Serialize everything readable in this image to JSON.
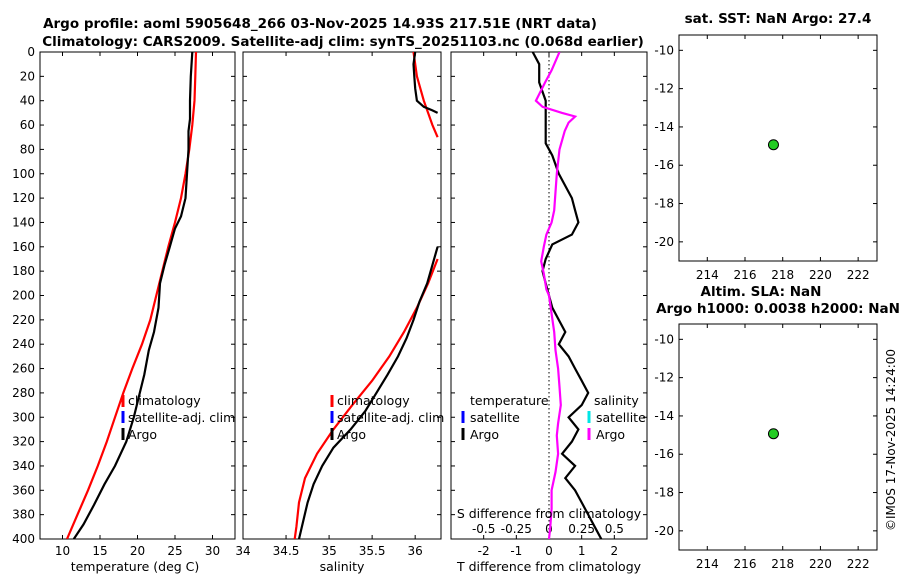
{
  "title": {
    "line1": "Argo profile: aoml 5905648_266 03-Nov-2025 14.93S 217.51E (NRT data)",
    "line2": "Climatology: CARS2009. Satellite-adj clim: synTS_20251103.nc (0.068d earlier)"
  },
  "timestamp": "©IMOS 17-Nov-2025 14:24:00",
  "colors": {
    "climatology": "#ff0000",
    "satellite": "#0000ff",
    "satellite_salinity": "#00e5e5",
    "argo": "#000000",
    "s_diff": "#ff00ff",
    "marker": "#22cc22"
  },
  "chart_data": [
    {
      "id": "temperature",
      "type": "line",
      "xlabel": "temperature (deg C)",
      "ylabel": "",
      "xlim": [
        7,
        33
      ],
      "ylim": [
        400,
        0
      ],
      "xticks": [
        10,
        15,
        20,
        25,
        30
      ],
      "yticks": [
        0,
        20,
        40,
        60,
        80,
        100,
        120,
        140,
        160,
        180,
        200,
        220,
        240,
        260,
        280,
        300,
        320,
        340,
        360,
        380,
        400
      ],
      "legend": [
        "climatology",
        "satellite-adj. clim",
        "Argo"
      ],
      "series": [
        {
          "name": "climatology",
          "color": "#ff0000",
          "points": [
            [
              27.8,
              0
            ],
            [
              27.7,
              20
            ],
            [
              27.6,
              40
            ],
            [
              27.3,
              60
            ],
            [
              26.9,
              80
            ],
            [
              26.4,
              100
            ],
            [
              25.8,
              120
            ],
            [
              25.0,
              140
            ],
            [
              24.1,
              160
            ],
            [
              23.3,
              180
            ],
            [
              22.5,
              200
            ],
            [
              21.7,
              220
            ],
            [
              20.6,
              240
            ],
            [
              19.3,
              260
            ],
            [
              18.1,
              280
            ],
            [
              17.0,
              300
            ],
            [
              15.9,
              320
            ],
            [
              14.7,
              340
            ],
            [
              13.4,
              360
            ],
            [
              12.0,
              380
            ],
            [
              10.6,
              400
            ]
          ]
        },
        {
          "name": "Argo",
          "color": "#000000",
          "points": [
            [
              27.3,
              0
            ],
            [
              27.1,
              20
            ],
            [
              27.0,
              40
            ],
            [
              27.0,
              55
            ],
            [
              26.8,
              65
            ],
            [
              26.8,
              80
            ],
            [
              26.6,
              100
            ],
            [
              26.4,
              120
            ],
            [
              25.8,
              135
            ],
            [
              25.0,
              145
            ],
            [
              24.3,
              160
            ],
            [
              23.6,
              175
            ],
            [
              23.0,
              190
            ],
            [
              22.8,
              210
            ],
            [
              22.2,
              230
            ],
            [
              21.5,
              245
            ],
            [
              20.9,
              265
            ],
            [
              20.3,
              280
            ],
            [
              19.5,
              300
            ],
            [
              18.5,
              320
            ],
            [
              17.0,
              340
            ],
            [
              15.6,
              355
            ],
            [
              14.2,
              372
            ],
            [
              12.8,
              388
            ],
            [
              11.5,
              400
            ]
          ]
        }
      ]
    },
    {
      "id": "salinity",
      "type": "line",
      "xlabel": "salinity",
      "xlim": [
        34.0,
        36.3
      ],
      "ylim": [
        400,
        0
      ],
      "xticks": [
        "34",
        "34.5",
        "35",
        "35.5",
        "36"
      ],
      "legend": [
        "climatology",
        "satellite-adj. clim",
        "Argo"
      ],
      "series": [
        {
          "name": "climatology",
          "color": "#ff0000",
          "points": [
            [
              35.98,
              0
            ],
            [
              36.02,
              20
            ],
            [
              36.1,
              40
            ],
            [
              36.2,
              60
            ],
            [
              36.26,
              70
            ]
          ]
        },
        {
          "name": "climatology",
          "color": "#ff0000",
          "points": [
            [
              36.26,
              170
            ],
            [
              36.15,
              190
            ],
            [
              36.02,
              210
            ],
            [
              35.87,
              230
            ],
            [
              35.7,
              250
            ],
            [
              35.5,
              270
            ],
            [
              35.27,
              290
            ],
            [
              35.05,
              310
            ],
            [
              34.86,
              330
            ],
            [
              34.72,
              350
            ],
            [
              34.65,
              370
            ],
            [
              34.62,
              390
            ],
            [
              34.6,
              400
            ]
          ]
        },
        {
          "name": "Argo",
          "color": "#000000",
          "points": [
            [
              36.0,
              0
            ],
            [
              35.98,
              10
            ],
            [
              35.99,
              20
            ],
            [
              36.0,
              30
            ],
            [
              36.02,
              40
            ],
            [
              36.1,
              45
            ],
            [
              36.2,
              48
            ],
            [
              36.26,
              50
            ]
          ]
        },
        {
          "name": "Argo",
          "color": "#000000",
          "points": [
            [
              36.26,
              160
            ],
            [
              36.2,
              175
            ],
            [
              36.14,
              190
            ],
            [
              36.05,
              205
            ],
            [
              35.98,
              220
            ],
            [
              35.9,
              235
            ],
            [
              35.8,
              250
            ],
            [
              35.68,
              265
            ],
            [
              35.55,
              280
            ],
            [
              35.42,
              295
            ],
            [
              35.25,
              310
            ],
            [
              35.05,
              325
            ],
            [
              34.92,
              340
            ],
            [
              34.82,
              355
            ],
            [
              34.75,
              370
            ],
            [
              34.7,
              385
            ],
            [
              34.65,
              400
            ]
          ]
        }
      ]
    },
    {
      "id": "difference",
      "type": "line",
      "xlabel": "T difference from climatology",
      "top_axis_label": "S difference from climatology",
      "xlim": [
        -3,
        3
      ],
      "ylim": [
        400,
        0
      ],
      "xticks": [
        "-2",
        "-1",
        "0",
        "1",
        "2"
      ],
      "top_ticks": [
        "-0.5",
        "-0.25",
        "0",
        "0.25",
        "0.5"
      ],
      "legend_headers": [
        "temperature",
        "salinity"
      ],
      "legend": [
        "satellite",
        "Argo",
        "satellite",
        "Argo"
      ],
      "series": [
        {
          "name": "T difference (Argo)",
          "color": "#000000",
          "points": [
            [
              -0.5,
              0
            ],
            [
              -0.3,
              10
            ],
            [
              -0.3,
              25
            ],
            [
              -0.1,
              40
            ],
            [
              -0.1,
              60
            ],
            [
              -0.1,
              75
            ],
            [
              0.1,
              85
            ],
            [
              0.3,
              100
            ],
            [
              0.5,
              110
            ],
            [
              0.7,
              120
            ],
            [
              0.8,
              130
            ],
            [
              0.9,
              140
            ],
            [
              0.7,
              150
            ],
            [
              0.1,
              158
            ],
            [
              -0.1,
              170
            ],
            [
              -0.2,
              180
            ],
            [
              -0.1,
              190
            ],
            [
              0.0,
              200
            ],
            [
              0.1,
              210
            ],
            [
              0.3,
              220
            ],
            [
              0.5,
              230
            ],
            [
              0.3,
              240
            ],
            [
              0.6,
              250
            ],
            [
              0.8,
              260
            ],
            [
              1.0,
              270
            ],
            [
              1.2,
              280
            ],
            [
              1.0,
              290
            ],
            [
              0.6,
              300
            ],
            [
              0.9,
              310
            ],
            [
              0.7,
              320
            ],
            [
              0.4,
              330
            ],
            [
              0.8,
              340
            ],
            [
              0.5,
              350
            ],
            [
              0.8,
              360
            ],
            [
              1.0,
              370
            ],
            [
              1.2,
              380
            ],
            [
              1.4,
              390
            ],
            [
              1.6,
              400
            ]
          ]
        },
        {
          "name": "S difference (Argo)",
          "color": "#ff00ff",
          "points": [
            [
              0.08,
              0
            ],
            [
              0.02,
              15
            ],
            [
              -0.03,
              25
            ],
            [
              -0.1,
              40
            ],
            [
              -0.05,
              45
            ],
            [
              0.1,
              50
            ],
            [
              0.2,
              53
            ],
            [
              0.15,
              58
            ],
            [
              0.12,
              65
            ],
            [
              0.08,
              80
            ],
            [
              0.06,
              100
            ],
            [
              0.05,
              115
            ],
            [
              0.04,
              130
            ],
            [
              0.02,
              140
            ],
            [
              -0.02,
              150
            ],
            [
              -0.04,
              160
            ],
            [
              -0.06,
              172
            ],
            [
              -0.04,
              182
            ],
            [
              -0.02,
              195
            ],
            [
              0.0,
              200
            ],
            [
              0.02,
              215
            ],
            [
              0.04,
              230
            ],
            [
              0.05,
              245
            ],
            [
              0.07,
              260
            ],
            [
              0.08,
              275
            ],
            [
              0.09,
              290
            ],
            [
              0.07,
              305
            ],
            [
              0.06,
              315
            ],
            [
              0.07,
              330
            ],
            [
              0.05,
              345
            ],
            [
              0.02,
              360
            ],
            [
              0.02,
              375
            ],
            [
              0.01,
              390
            ],
            [
              0.0,
              400
            ]
          ]
        }
      ]
    },
    {
      "id": "sst-map",
      "type": "scatter",
      "title": "sat. SST: NaN Argo: 27.4",
      "xlim": [
        212.5,
        223
      ],
      "ylim": [
        -21,
        -9.2
      ],
      "xticks": [
        "214",
        "216",
        "218",
        "220",
        "222"
      ],
      "yticks": [
        "-10",
        "-12",
        "-14",
        "-16",
        "-18",
        "-20"
      ],
      "points": [
        [
          217.51,
          -14.93
        ]
      ]
    },
    {
      "id": "sla-map",
      "type": "scatter",
      "title": "Altim. SLA: NaN",
      "subtitle": "Argo h1000: 0.0038 h2000: NaN",
      "xlim": [
        212.5,
        223
      ],
      "ylim": [
        -21,
        -9.2
      ],
      "xticks": [
        "214",
        "216",
        "218",
        "220",
        "222"
      ],
      "yticks": [
        "-10",
        "-12",
        "-14",
        "-16",
        "-18",
        "-20"
      ],
      "points": [
        [
          217.51,
          -14.93
        ]
      ]
    }
  ]
}
